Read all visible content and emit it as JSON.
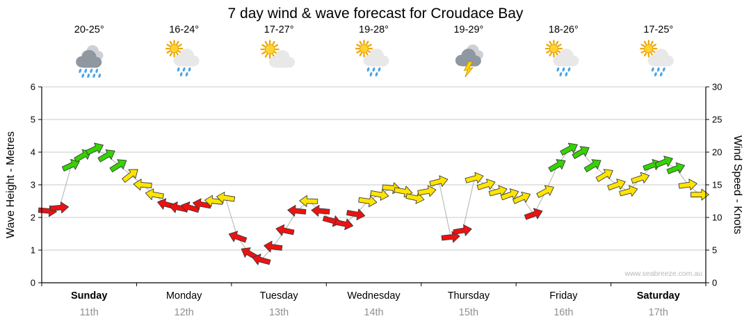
{
  "title": "7 day wind & wave forecast for Croudace Bay",
  "watermark": "www.seabreeze.com.au",
  "axis_left": {
    "label": "Wave Height - Metres",
    "ticks": [
      0,
      1,
      2,
      3,
      4,
      5,
      6
    ]
  },
  "axis_right": {
    "label": "Wind Speed - Knots",
    "ticks": [
      0,
      5,
      10,
      15,
      20,
      25,
      30
    ]
  },
  "days": [
    {
      "name": "Sunday",
      "date": "11th",
      "temp": "20-25°",
      "icon": "rain-heavy",
      "bold": true
    },
    {
      "name": "Monday",
      "date": "12th",
      "temp": "16-24°",
      "icon": "sun-shower",
      "bold": false
    },
    {
      "name": "Tuesday",
      "date": "13th",
      "temp": "17-27°",
      "icon": "sun-cloudy",
      "bold": false
    },
    {
      "name": "Wednesday",
      "date": "14th",
      "temp": "19-28°",
      "icon": "sun-shower",
      "bold": false
    },
    {
      "name": "Thursday",
      "date": "15th",
      "temp": "19-29°",
      "icon": "storm",
      "bold": false
    },
    {
      "name": "Friday",
      "date": "16th",
      "temp": "18-26°",
      "icon": "sun-shower",
      "bold": false
    },
    {
      "name": "Saturday",
      "date": "17th",
      "temp": "17-25°",
      "icon": "sun-shower",
      "bold": true
    }
  ],
  "chart_data": {
    "type": "wind-arrows-line",
    "title": "7 day wind & wave forecast for Croudace Bay",
    "x_axis": {
      "unit": "hours",
      "range": [
        0,
        168
      ],
      "day_labels": [
        "Sunday 11th",
        "Monday 12th",
        "Tuesday 13th",
        "Wednesday 14th",
        "Thursday 15th",
        "Friday 16th",
        "Saturday 17th"
      ]
    },
    "y_left": {
      "label": "Wave Height - Metres",
      "range": [
        0,
        6
      ]
    },
    "y_right": {
      "label": "Wind Speed - Knots",
      "range": [
        0,
        30
      ]
    },
    "grid": true,
    "legend": false,
    "speed_colors": {
      "red": {
        "max_knots": 12.5,
        "hex": "#EE1111"
      },
      "yellow": {
        "max_knots": 17.5,
        "hex": "#FFE400"
      },
      "green": {
        "max_knots": 30,
        "hex": "#33D400"
      }
    },
    "points_format": [
      "hour",
      "wind_knots",
      "arrow_angle_deg"
    ],
    "points": [
      [
        1.5,
        11,
        5
      ],
      [
        4.5,
        11.5,
        -5
      ],
      [
        7.5,
        18,
        -25
      ],
      [
        10.5,
        19.5,
        -30
      ],
      [
        13.5,
        20.5,
        -25
      ],
      [
        16.5,
        19.5,
        -30
      ],
      [
        19.5,
        18,
        -32
      ],
      [
        22.5,
        16.5,
        -38
      ],
      [
        25.5,
        15,
        185
      ],
      [
        28.5,
        13.5,
        190
      ],
      [
        31.5,
        12,
        195
      ],
      [
        34.5,
        11.5,
        192
      ],
      [
        37.5,
        11.5,
        196
      ],
      [
        40.5,
        12,
        190
      ],
      [
        43.5,
        12.5,
        186
      ],
      [
        46.5,
        13,
        188
      ],
      [
        49.5,
        7,
        200
      ],
      [
        52.5,
        4.5,
        210
      ],
      [
        55.5,
        3.5,
        195
      ],
      [
        58.5,
        5.5,
        188
      ],
      [
        61.5,
        8,
        192
      ],
      [
        64.5,
        11,
        186
      ],
      [
        67.5,
        12.5,
        182
      ],
      [
        70.5,
        11,
        185
      ],
      [
        73.5,
        9.5,
        15
      ],
      [
        76.5,
        9,
        12
      ],
      [
        79.5,
        10.5,
        10
      ],
      [
        82.5,
        12.5,
        8
      ],
      [
        85.5,
        13.5,
        10
      ],
      [
        88.5,
        14.5,
        6
      ],
      [
        91.5,
        14,
        10
      ],
      [
        94.5,
        13,
        12
      ],
      [
        97.5,
        14,
        -10
      ],
      [
        100.5,
        15.5,
        -14
      ],
      [
        103.5,
        7,
        -6
      ],
      [
        106.5,
        8,
        -10
      ],
      [
        109.5,
        16,
        -15
      ],
      [
        112.5,
        15,
        -18
      ],
      [
        115.5,
        14,
        -15
      ],
      [
        118.5,
        13.5,
        -20
      ],
      [
        121.5,
        13,
        -24
      ],
      [
        124.5,
        10.5,
        -20
      ],
      [
        127.5,
        14,
        -28
      ],
      [
        130.5,
        18,
        -30
      ],
      [
        133.5,
        20.5,
        -28
      ],
      [
        136.5,
        20,
        -30
      ],
      [
        139.5,
        18,
        -32
      ],
      [
        142.5,
        16.5,
        -30
      ],
      [
        145.5,
        15,
        -20
      ],
      [
        148.5,
        14,
        -15
      ],
      [
        151.5,
        16,
        -18
      ],
      [
        154.5,
        18,
        -20
      ],
      [
        157.5,
        18.5,
        -22
      ],
      [
        160.5,
        17.5,
        -20
      ],
      [
        163.5,
        15,
        -8
      ],
      [
        166.5,
        13.5,
        0
      ]
    ]
  },
  "style": {
    "grid": "#c9c9c9",
    "axis": "#000000",
    "trace_line": "#b0b0b0",
    "date_text": "#8f8f8f",
    "temp_text": "#000000",
    "arrow_outline": "#3a3a3a"
  }
}
